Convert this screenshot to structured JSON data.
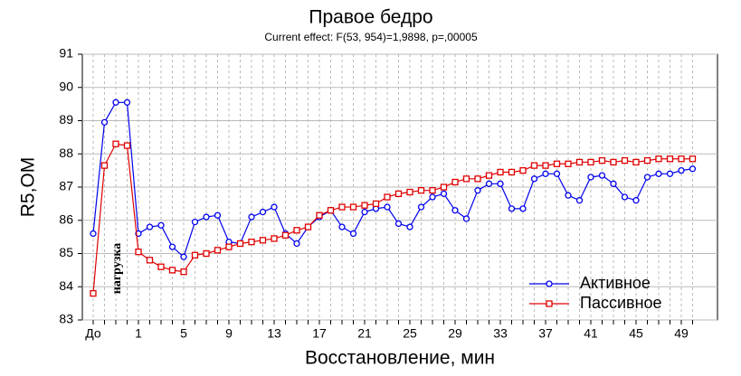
{
  "chart_data": {
    "type": "line",
    "title": "Правое бедро",
    "subtitle": "Current effect: F(53, 954)=1,9898, p=,00005",
    "y_label": "R5,ОМ",
    "x_label": "Восстановление, мин",
    "annotation": "нагрузка",
    "categories": [
      "До",
      null,
      null,
      null,
      "1",
      null,
      null,
      null,
      "5",
      null,
      null,
      null,
      "9",
      null,
      null,
      null,
      "13",
      null,
      null,
      null,
      "17",
      null,
      null,
      null,
      "21",
      null,
      null,
      null,
      "25",
      null,
      null,
      null,
      "29",
      null,
      null,
      null,
      "33",
      null,
      null,
      null,
      "37",
      null,
      null,
      null,
      "41",
      null,
      null,
      null,
      "45",
      null,
      null,
      null,
      "49",
      null
    ],
    "series": [
      {
        "name": "Активное",
        "color": "#0000ee",
        "marker": "circle",
        "values": [
          85.6,
          88.95,
          89.55,
          89.55,
          85.6,
          85.8,
          85.85,
          85.2,
          84.9,
          85.95,
          86.1,
          86.15,
          85.35,
          85.3,
          86.1,
          86.25,
          86.4,
          85.6,
          85.3,
          85.8,
          86.1,
          86.3,
          85.8,
          85.6,
          86.25,
          86.35,
          86.4,
          85.9,
          85.8,
          86.4,
          86.7,
          86.8,
          86.3,
          86.05,
          86.9,
          87.1,
          87.1,
          86.35,
          86.35,
          87.25,
          87.4,
          87.4,
          86.75,
          86.6,
          87.3,
          87.35,
          87.1,
          86.7,
          86.6,
          87.3,
          87.4,
          87.4,
          87.5,
          87.55
        ]
      },
      {
        "name": "Пассивное",
        "color": "#e00000",
        "marker": "square",
        "values": [
          83.8,
          87.65,
          88.3,
          88.25,
          85.05,
          84.8,
          84.6,
          84.5,
          84.45,
          84.95,
          85.0,
          85.1,
          85.2,
          85.3,
          85.35,
          85.4,
          85.45,
          85.55,
          85.7,
          85.8,
          86.15,
          86.3,
          86.4,
          86.4,
          86.45,
          86.5,
          86.7,
          86.8,
          86.85,
          86.9,
          86.9,
          87.0,
          87.15,
          87.25,
          87.25,
          87.35,
          87.45,
          87.45,
          87.5,
          87.65,
          87.65,
          87.7,
          87.7,
          87.75,
          87.75,
          87.8,
          87.75,
          87.8,
          87.75,
          87.8,
          87.85,
          87.85,
          87.85,
          87.85
        ]
      }
    ],
    "ylim": [
      83,
      91
    ],
    "yticks": [
      83,
      84,
      85,
      86,
      87,
      88,
      89,
      90,
      91
    ],
    "grid": true,
    "legend": "lower right"
  }
}
